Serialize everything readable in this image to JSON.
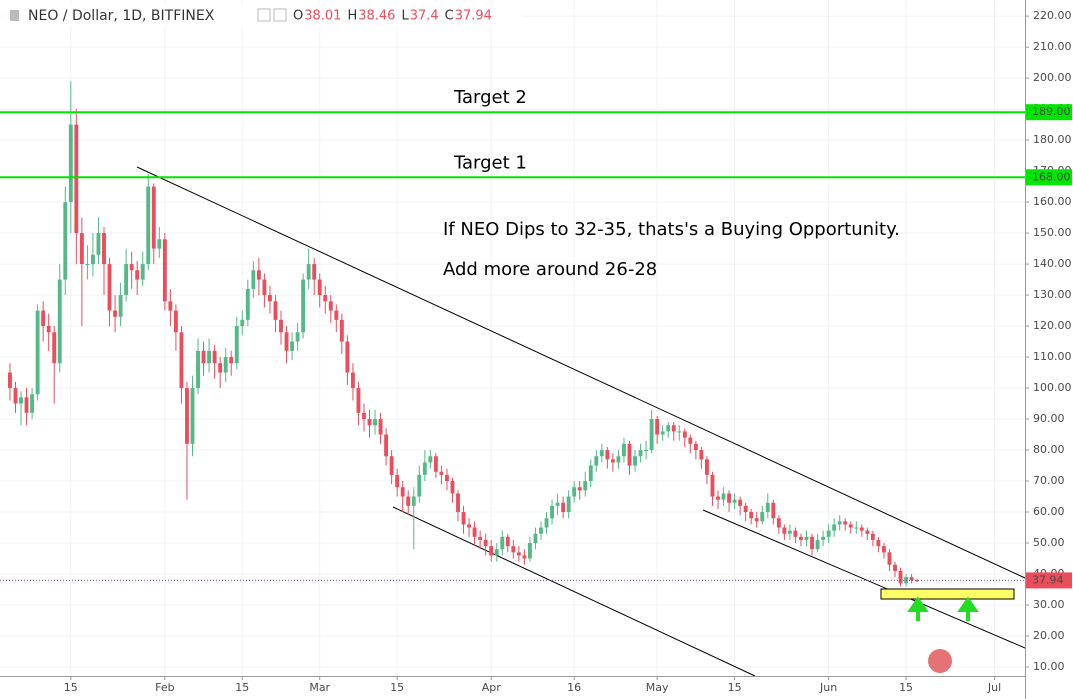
{
  "chart_data": {
    "type": "candlestick",
    "title": "NEO / Dollar, 1D, BITFINEX",
    "ohlc_labels": [
      "O",
      "H",
      "L",
      "C"
    ],
    "up_color": "#53b987",
    "down_color": "#eb4d5c",
    "grid": true,
    "xlim": [
      -1.8,
      183.5
    ],
    "ylim": [
      7.1,
      225.2
    ],
    "xticks": [
      {
        "value": 11,
        "label": "15"
      },
      {
        "value": 28,
        "label": "Feb"
      },
      {
        "value": 42,
        "label": "15"
      },
      {
        "value": 56,
        "label": "Mar"
      },
      {
        "value": 70,
        "label": "15"
      },
      {
        "value": 87,
        "label": "Apr"
      },
      {
        "value": 102,
        "label": "16"
      },
      {
        "value": 117,
        "label": "May"
      },
      {
        "value": 131,
        "label": "15"
      },
      {
        "value": 148,
        "label": "Jun"
      },
      {
        "value": 162,
        "label": "15"
      },
      {
        "value": 178,
        "label": "Jul"
      }
    ],
    "yticks": [
      {
        "value": 10,
        "label": "10.00"
      },
      {
        "value": 20,
        "label": "20.00"
      },
      {
        "value": 30,
        "label": "30.00"
      },
      {
        "value": 40,
        "label": "40.00"
      },
      {
        "value": 50,
        "label": "50.00"
      },
      {
        "value": 60,
        "label": "60.00"
      },
      {
        "value": 70,
        "label": "70.00"
      },
      {
        "value": 80,
        "label": "80.00"
      },
      {
        "value": 90,
        "label": "90.00"
      },
      {
        "value": 100,
        "label": "100.00"
      },
      {
        "value": 110,
        "label": "110.00"
      },
      {
        "value": 120,
        "label": "120.00"
      },
      {
        "value": 130,
        "label": "130.00"
      },
      {
        "value": 140,
        "label": "140.00"
      },
      {
        "value": 150,
        "label": "150.00"
      },
      {
        "value": 160,
        "label": "160.00"
      },
      {
        "value": 170,
        "label": "170.00"
      },
      {
        "value": 180,
        "label": "180.00"
      },
      {
        "value": 190,
        "label": "190.00"
      },
      {
        "value": 200,
        "label": "200.00"
      },
      {
        "value": 210,
        "label": "210.00"
      },
      {
        "value": 220,
        "label": "220.00"
      }
    ],
    "hlines": [
      {
        "value": 189,
        "label": "189.00",
        "text": "Target 2",
        "color": "#00e600"
      },
      {
        "value": 168,
        "label": "168.00",
        "text": "Target 1",
        "color": "#00e600"
      }
    ],
    "annotations": [
      "If NEO Dips to 32-35, thats's a Buying Opportunity.",
      "Add more around 26-28"
    ],
    "open": [
      105,
      100,
      95,
      97,
      92,
      98,
      125,
      120,
      118,
      108,
      135,
      160,
      185,
      150,
      140,
      140,
      143,
      150,
      140,
      125,
      123,
      130,
      140,
      138,
      135,
      140,
      165,
      145,
      148,
      128,
      125,
      118,
      100,
      82,
      100,
      112,
      108,
      112,
      108,
      105,
      110,
      108,
      120,
      122,
      132,
      138,
      135,
      130,
      128,
      122,
      118,
      112,
      115,
      118,
      135,
      140,
      135,
      130,
      128,
      125,
      122,
      115,
      105,
      100,
      92,
      90,
      88,
      90,
      85,
      78,
      72,
      68,
      65,
      62,
      65,
      72,
      76,
      78,
      73,
      72,
      70,
      66,
      60,
      56,
      55,
      52,
      51,
      49,
      46,
      48,
      52,
      49,
      47,
      46,
      45,
      50,
      53,
      55,
      58,
      62,
      63,
      60,
      65,
      68,
      67,
      70,
      75,
      78,
      80,
      77,
      76,
      78,
      82,
      75,
      78,
      80,
      80,
      90,
      85,
      86,
      88,
      86,
      86,
      84,
      82,
      80,
      77,
      72,
      65,
      64,
      66,
      63,
      64,
      62,
      60,
      58,
      57,
      60,
      63,
      58,
      55,
      53,
      54,
      52,
      51,
      52,
      48,
      51,
      52,
      54,
      56,
      57,
      56,
      55,
      55,
      54,
      53,
      51,
      49,
      47,
      43,
      41,
      37,
      39,
      38.01
    ],
    "high": [
      108,
      102,
      99,
      100,
      100,
      127,
      128,
      124,
      120,
      140,
      165,
      199,
      190,
      155,
      146,
      150,
      155,
      152,
      142,
      130,
      134,
      145,
      144,
      141,
      144,
      169,
      166,
      152,
      150,
      132,
      127,
      120,
      102,
      104,
      116,
      115,
      116,
      114,
      110,
      113,
      112,
      123,
      125,
      135,
      141,
      142,
      137,
      133,
      130,
      125,
      120,
      118,
      121,
      137,
      145,
      142,
      137,
      133,
      130,
      127,
      124,
      117,
      108,
      102,
      95,
      93,
      93,
      92,
      87,
      80,
      74,
      70,
      67,
      68,
      75,
      80,
      80,
      79,
      75,
      74,
      71,
      67,
      62,
      58,
      57,
      54,
      53,
      51,
      50,
      54,
      53,
      51,
      49,
      48,
      52,
      55,
      57,
      60,
      64,
      66,
      65,
      67,
      70,
      70,
      73,
      77,
      80,
      82,
      81,
      79,
      80,
      84,
      83,
      80,
      82,
      83,
      93,
      91,
      88,
      89,
      89,
      88,
      87,
      85,
      83,
      81,
      78,
      73,
      67,
      68,
      67,
      66,
      65,
      63,
      61,
      60,
      62,
      66,
      64,
      59,
      56,
      56,
      55,
      53,
      54,
      53,
      53,
      54,
      56,
      58,
      59,
      58,
      57,
      57,
      56,
      55,
      54,
      52,
      50,
      48,
      44,
      42,
      40,
      40,
      38.46
    ],
    "low": [
      96,
      92,
      88,
      88,
      90,
      96,
      115,
      112,
      95,
      105,
      130,
      150,
      140,
      120,
      135,
      136,
      140,
      130,
      120,
      118,
      120,
      128,
      132,
      130,
      133,
      138,
      140,
      142,
      125,
      120,
      112,
      95,
      64,
      78,
      98,
      104,
      105,
      103,
      100,
      102,
      104,
      106,
      117,
      120,
      129,
      130,
      126,
      124,
      118,
      114,
      108,
      109,
      112,
      116,
      132,
      130,
      126,
      124,
      121,
      118,
      111,
      101,
      96,
      88,
      86,
      84,
      85,
      82,
      75,
      69,
      65,
      60,
      59,
      48,
      63,
      70,
      74,
      71,
      69,
      67,
      63,
      57,
      53,
      52,
      49,
      48,
      46,
      44,
      44,
      46,
      47,
      45,
      44,
      43,
      44,
      48,
      51,
      53,
      56,
      59,
      58,
      58,
      63,
      64,
      65,
      68,
      73,
      76,
      74,
      73,
      74,
      76,
      72,
      73,
      76,
      77,
      79,
      82,
      83,
      84,
      83,
      83,
      81,
      79,
      77,
      74,
      69,
      62,
      61,
      62,
      60,
      61,
      59,
      57,
      56,
      55,
      56,
      58,
      56,
      53,
      51,
      51,
      50,
      49,
      49,
      46,
      47,
      49,
      50,
      52,
      54,
      54,
      53,
      53,
      52,
      51,
      49,
      47,
      45,
      41,
      39,
      36,
      36,
      37,
      37.4
    ],
    "close": [
      100,
      95,
      97,
      92,
      98,
      125,
      120,
      118,
      108,
      135,
      160,
      185,
      150,
      140,
      140,
      143,
      150,
      140,
      125,
      123,
      130,
      140,
      138,
      135,
      140,
      165,
      145,
      148,
      128,
      125,
      118,
      100,
      82,
      100,
      112,
      108,
      112,
      108,
      105,
      110,
      108,
      120,
      122,
      132,
      138,
      135,
      130,
      128,
      122,
      118,
      112,
      115,
      118,
      135,
      140,
      135,
      130,
      128,
      125,
      122,
      115,
      105,
      100,
      92,
      90,
      88,
      90,
      85,
      78,
      72,
      68,
      65,
      62,
      65,
      72,
      76,
      78,
      73,
      72,
      70,
      66,
      60,
      56,
      55,
      52,
      51,
      49,
      46,
      48,
      52,
      49,
      47,
      46,
      45,
      50,
      53,
      55,
      58,
      62,
      63,
      60,
      65,
      68,
      67,
      70,
      75,
      78,
      80,
      77,
      76,
      78,
      82,
      75,
      78,
      80,
      80,
      90,
      85,
      86,
      88,
      86,
      86,
      84,
      82,
      80,
      77,
      72,
      65,
      64,
      66,
      63,
      64,
      62,
      60,
      58,
      57,
      60,
      63,
      58,
      55,
      53,
      54,
      52,
      51,
      52,
      48,
      51,
      52,
      54,
      56,
      57,
      56,
      55,
      55,
      54,
      53,
      51,
      49,
      47,
      43,
      41,
      37,
      39,
      38,
      37.94
    ]
  }
}
